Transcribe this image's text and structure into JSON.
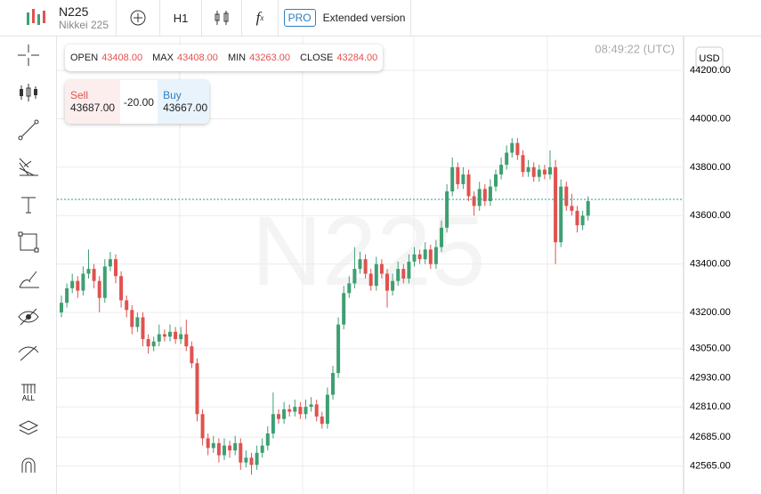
{
  "header": {
    "symbol": "N225",
    "name": "Nikkei 225",
    "timeframe": "H1",
    "pro": "PRO",
    "extended": "Extended version"
  },
  "ohlc": {
    "open_label": "OPEN",
    "open": "43408.00",
    "max_label": "MAX",
    "max": "43408.00",
    "min_label": "MIN",
    "min": "43263.00",
    "close_label": "CLOSE",
    "close": "43284.00"
  },
  "trade": {
    "sell_label": "Sell",
    "sell": "43687.00",
    "spread": "-20.00",
    "buy_label": "Buy",
    "buy": "43667.00"
  },
  "clock": "08:49:22 (UTC)",
  "currency": "USD",
  "watermark": "N225",
  "tools": {
    "all": "ALL"
  },
  "chart_data": {
    "type": "candlestick",
    "up_color": "#3e9f72",
    "down_color": "#e0524f",
    "current_price": 43667,
    "ylim": [
      42450,
      44340
    ],
    "yticks": [
      {
        "value": 44200,
        "label": "44200.00"
      },
      {
        "value": 44000,
        "label": "44000.00"
      },
      {
        "value": 43800,
        "label": "43800.00"
      },
      {
        "value": 43600,
        "label": "43600.00"
      },
      {
        "value": 43400,
        "label": "43400.00"
      },
      {
        "value": 43200,
        "label": "43200.00"
      },
      {
        "value": 43050,
        "label": "43050.00"
      },
      {
        "value": 42930,
        "label": "42930.00"
      },
      {
        "value": 42810,
        "label": "42810.00"
      },
      {
        "value": 42685,
        "label": "42685.00"
      },
      {
        "value": 42565,
        "label": "42565.00"
      }
    ],
    "candles": [
      [
        43200,
        43270,
        43180,
        43240
      ],
      [
        43240,
        43320,
        43220,
        43300
      ],
      [
        43300,
        43360,
        43280,
        43330
      ],
      [
        43330,
        43350,
        43260,
        43290
      ],
      [
        43290,
        43390,
        43270,
        43360
      ],
      [
        43360,
        43460,
        43340,
        43380
      ],
      [
        43380,
        43400,
        43300,
        43330
      ],
      [
        43330,
        43350,
        43200,
        43260
      ],
      [
        43260,
        43420,
        43240,
        43390
      ],
      [
        43390,
        43450,
        43370,
        43420
      ],
      [
        43420,
        43440,
        43320,
        43350
      ],
      [
        43350,
        43370,
        43220,
        43250
      ],
      [
        43250,
        43270,
        43180,
        43210
      ],
      [
        43210,
        43230,
        43110,
        43140
      ],
      [
        43140,
        43200,
        43120,
        43180
      ],
      [
        43180,
        43200,
        43060,
        43090
      ],
      [
        43090,
        43110,
        43030,
        43060
      ],
      [
        43060,
        43100,
        43040,
        43080
      ],
      [
        43080,
        43150,
        43060,
        43110
      ],
      [
        43110,
        43130,
        43080,
        43100
      ],
      [
        43100,
        43150,
        43080,
        43120
      ],
      [
        43120,
        43140,
        43070,
        43090
      ],
      [
        43090,
        43140,
        43070,
        43110
      ],
      [
        43110,
        43170,
        43040,
        43060
      ],
      [
        43060,
        43080,
        42970,
        42990
      ],
      [
        42990,
        43010,
        42750,
        42780
      ],
      [
        42780,
        42800,
        42650,
        42680
      ],
      [
        42680,
        42700,
        42610,
        42640
      ],
      [
        42640,
        42690,
        42620,
        42660
      ],
      [
        42660,
        42680,
        42580,
        42610
      ],
      [
        42610,
        42680,
        42590,
        42650
      ],
      [
        42650,
        42670,
        42600,
        42630
      ],
      [
        42630,
        42690,
        42610,
        42660
      ],
      [
        42660,
        42680,
        42550,
        42580
      ],
      [
        42580,
        42630,
        42560,
        42600
      ],
      [
        42600,
        42620,
        42530,
        42570
      ],
      [
        42570,
        42650,
        42550,
        42620
      ],
      [
        42620,
        42680,
        42600,
        42650
      ],
      [
        42650,
        42730,
        42630,
        42700
      ],
      [
        42700,
        42870,
        42680,
        42780
      ],
      [
        42780,
        42800,
        42740,
        42760
      ],
      [
        42760,
        42830,
        42740,
        42800
      ],
      [
        42800,
        42820,
        42770,
        42790
      ],
      [
        42790,
        42840,
        42770,
        42810
      ],
      [
        42810,
        42830,
        42760,
        42780
      ],
      [
        42780,
        42840,
        42760,
        42810
      ],
      [
        42810,
        42850,
        42790,
        42820
      ],
      [
        42820,
        42840,
        42750,
        42770
      ],
      [
        42770,
        42790,
        42720,
        42740
      ],
      [
        42740,
        42890,
        42720,
        42860
      ],
      [
        42860,
        42980,
        42840,
        42950
      ],
      [
        42950,
        43180,
        42930,
        43150
      ],
      [
        43150,
        43310,
        43130,
        43280
      ],
      [
        43280,
        43350,
        43260,
        43320
      ],
      [
        43320,
        43470,
        43300,
        43380
      ],
      [
        43380,
        43450,
        43360,
        43420
      ],
      [
        43420,
        43440,
        43340,
        43360
      ],
      [
        43360,
        43380,
        43290,
        43310
      ],
      [
        43310,
        43430,
        43290,
        43400
      ],
      [
        43400,
        43420,
        43340,
        43360
      ],
      [
        43360,
        43380,
        43220,
        43290
      ],
      [
        43290,
        43360,
        43270,
        43330
      ],
      [
        43330,
        43410,
        43310,
        43380
      ],
      [
        43380,
        43400,
        43320,
        43340
      ],
      [
        43340,
        43440,
        43320,
        43410
      ],
      [
        43410,
        43470,
        43390,
        43440
      ],
      [
        43440,
        43460,
        43400,
        43420
      ],
      [
        43420,
        43490,
        43400,
        43460
      ],
      [
        43460,
        43480,
        43380,
        43400
      ],
      [
        43400,
        43500,
        43380,
        43470
      ],
      [
        43470,
        43580,
        43450,
        43550
      ],
      [
        43550,
        43730,
        43530,
        43700
      ],
      [
        43700,
        43840,
        43680,
        43800
      ],
      [
        43800,
        43820,
        43710,
        43730
      ],
      [
        43730,
        43800,
        43710,
        43770
      ],
      [
        43770,
        43790,
        43660,
        43680
      ],
      [
        43680,
        43700,
        43600,
        43640
      ],
      [
        43640,
        43740,
        43620,
        43710
      ],
      [
        43710,
        43730,
        43640,
        43660
      ],
      [
        43660,
        43750,
        43640,
        43720
      ],
      [
        43720,
        43790,
        43700,
        43770
      ],
      [
        43770,
        43840,
        43750,
        43810
      ],
      [
        43810,
        43890,
        43790,
        43860
      ],
      [
        43860,
        43920,
        43840,
        43900
      ],
      [
        43900,
        43920,
        43830,
        43850
      ],
      [
        43850,
        43870,
        43760,
        43780
      ],
      [
        43780,
        43830,
        43760,
        43800
      ],
      [
        43800,
        43820,
        43740,
        43760
      ],
      [
        43760,
        43810,
        43740,
        43790
      ],
      [
        43790,
        43810,
        43750,
        43770
      ],
      [
        43770,
        43870,
        43750,
        43800
      ],
      [
        43800,
        43830,
        43400,
        43490
      ],
      [
        43490,
        43750,
        43470,
        43720
      ],
      [
        43720,
        43740,
        43620,
        43640
      ],
      [
        43640,
        43690,
        43600,
        43620
      ],
      [
        43620,
        43640,
        43530,
        43560
      ],
      [
        43560,
        43620,
        43540,
        43600
      ],
      [
        43600,
        43680,
        43580,
        43660
      ]
    ]
  }
}
